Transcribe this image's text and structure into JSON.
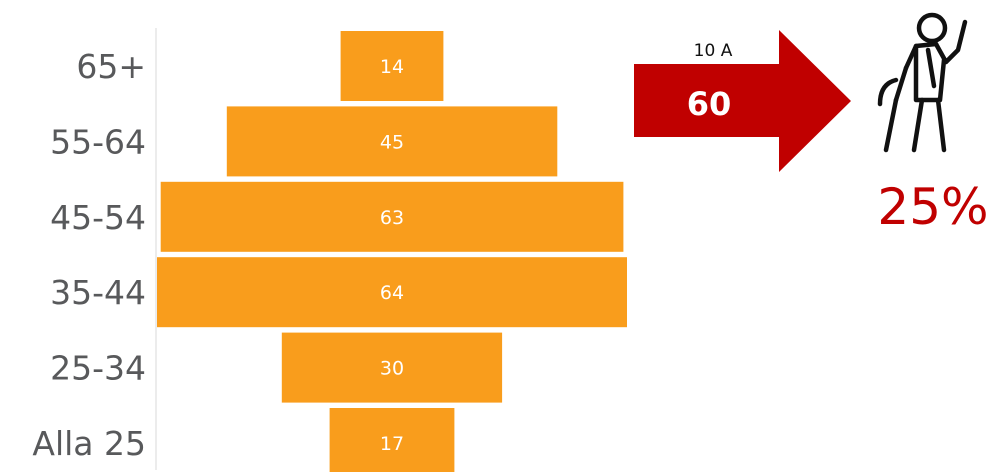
{
  "chart_data": {
    "type": "bar",
    "orientation": "horizontal",
    "layout": "centered",
    "categories": [
      "65+",
      "55-64",
      "45-54",
      "35-44",
      "25-34",
      "Alla 25"
    ],
    "values": [
      14,
      45,
      63,
      64,
      30,
      17
    ],
    "data_labels": [
      "14",
      "45",
      "63",
      "64",
      "30",
      "17"
    ],
    "title": "",
    "xlabel": "",
    "ylabel": "",
    "xlim": [
      0,
      64
    ],
    "grid": false,
    "legend": "none"
  },
  "callout": {
    "arrow_label": "10 A",
    "arrow_value": "60",
    "percent": "25%",
    "icon": "elderly-person-with-cane-icon"
  },
  "colors": {
    "bar": "#f99d1c",
    "arrow": "#c00000",
    "percent": "#c00000",
    "category_text": "#58595b",
    "axis": "#d9d9d9"
  }
}
